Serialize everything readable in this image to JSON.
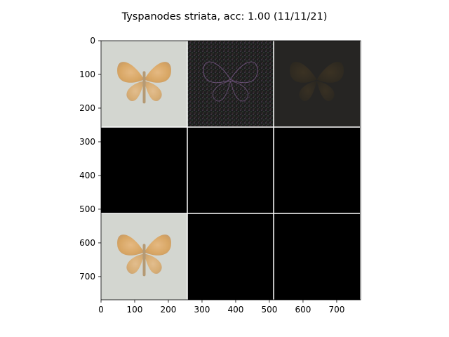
{
  "figure": {
    "title": "Tyspanodes striata, acc: 1.00 (11/11/21)",
    "x_ticks": [
      "0",
      "100",
      "200",
      "300",
      "400",
      "500",
      "600",
      "700"
    ],
    "y_ticks": [
      "0",
      "100",
      "200",
      "300",
      "400",
      "500",
      "600",
      "700"
    ]
  },
  "tiles": [
    {
      "row": 0,
      "col": 0,
      "content": "moth-photo",
      "background": "#d3d6d0"
    },
    {
      "row": 0,
      "col": 1,
      "content": "saliency-noise",
      "background": "#1e1e1e"
    },
    {
      "row": 0,
      "col": 2,
      "content": "dim-moth",
      "background": "#262523"
    },
    {
      "row": 1,
      "col": 0,
      "content": "black",
      "background": "#000000"
    },
    {
      "row": 1,
      "col": 1,
      "content": "black",
      "background": "#000000"
    },
    {
      "row": 1,
      "col": 2,
      "content": "black",
      "background": "#000000"
    },
    {
      "row": 2,
      "col": 0,
      "content": "moth-photo",
      "background": "#d3d6d0"
    },
    {
      "row": 2,
      "col": 1,
      "content": "black",
      "background": "#000000"
    },
    {
      "row": 2,
      "col": 2,
      "content": "black",
      "background": "#000000"
    }
  ],
  "colors": {
    "wing": "#d9a868",
    "wing_dark": "#b88a4e",
    "grid_line": "#ffffff"
  }
}
